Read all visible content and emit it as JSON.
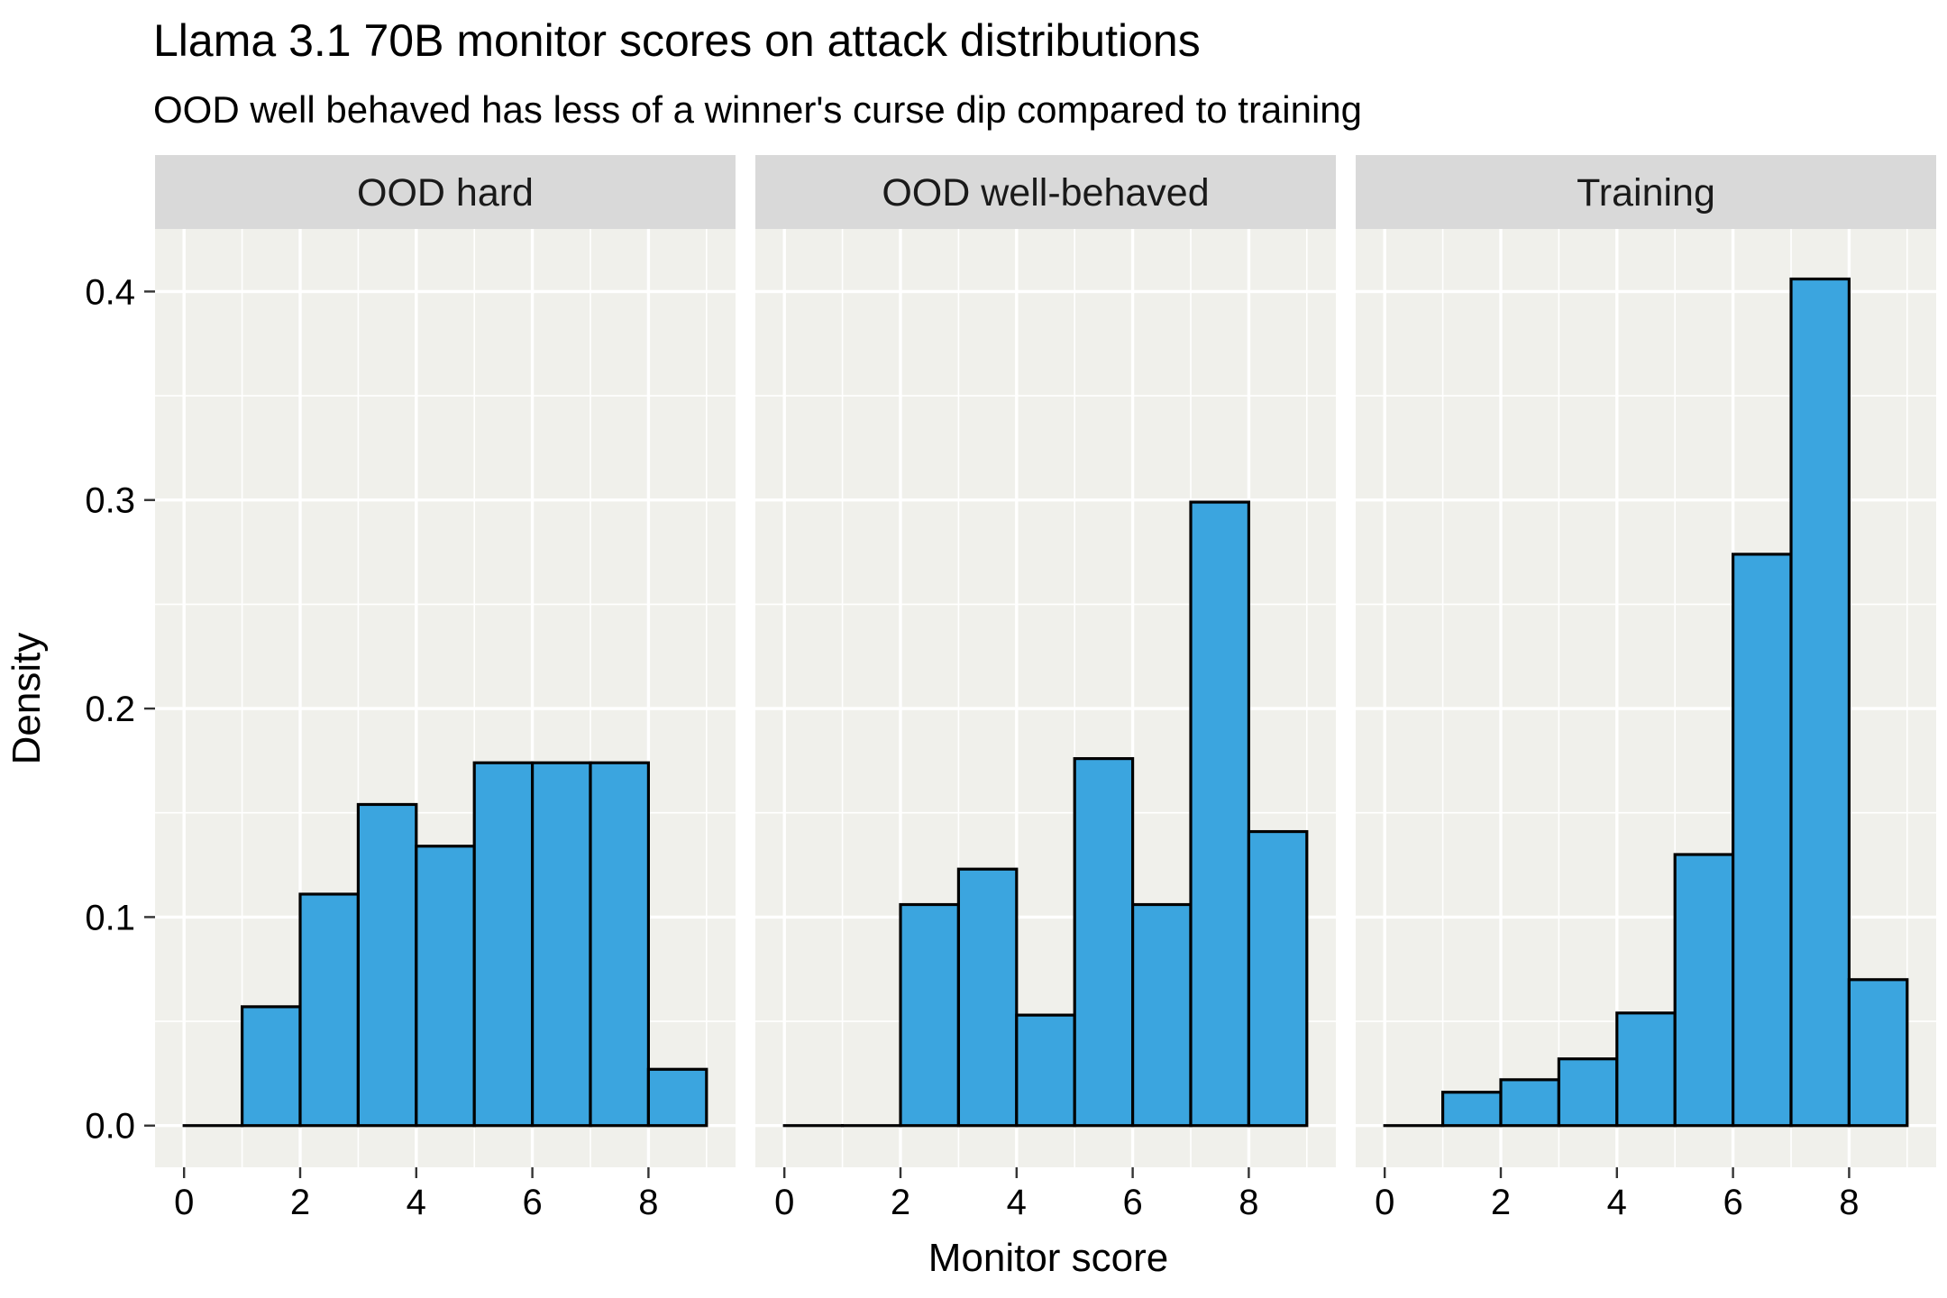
{
  "chart_data": {
    "type": "bar",
    "title": "Llama 3.1 70B monitor scores on attack distributions",
    "subtitle": "OOD well behaved has less of a winner's curse dip compared to training",
    "xlabel": "Monitor score",
    "ylabel": "Density",
    "xlim": [
      0,
      9
    ],
    "ylim": [
      0,
      0.43
    ],
    "x_ticks": [
      "0",
      "2",
      "4",
      "6",
      "8"
    ],
    "y_ticks": [
      "0.0",
      "0.1",
      "0.2",
      "0.3",
      "0.4"
    ],
    "bin_edges": [
      0,
      1,
      2,
      3,
      4,
      5,
      6,
      7,
      8,
      9
    ],
    "grid": true,
    "legend": "none",
    "colors": {
      "fill": "#3BA5DF",
      "outline": "#000000",
      "panel_bg": "#F0F0EB",
      "grid": "#FFFFFF",
      "strip_bg": "#D9D9D9"
    },
    "facets": [
      {
        "label": "OOD hard",
        "values": [
          0.0,
          0.057,
          0.111,
          0.154,
          0.134,
          0.174,
          0.174,
          0.174,
          0.027
        ]
      },
      {
        "label": "OOD well-behaved",
        "values": [
          0.0,
          0.0,
          0.106,
          0.123,
          0.053,
          0.176,
          0.106,
          0.299,
          0.141
        ]
      },
      {
        "label": "Training",
        "values": [
          0.0,
          0.016,
          0.022,
          0.032,
          0.054,
          0.13,
          0.274,
          0.406,
          0.07
        ]
      }
    ]
  }
}
